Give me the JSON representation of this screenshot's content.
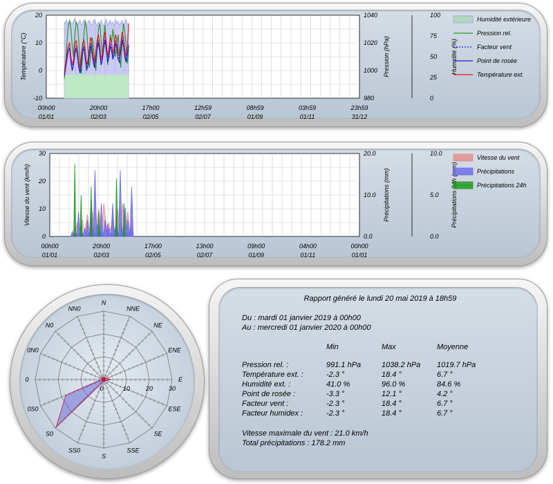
{
  "charts": {
    "chart_data": [
      {
        "type": "line",
        "x_tick_labels": [
          [
            "00h00",
            "01/01"
          ],
          [
            "20h00",
            "02/03"
          ],
          [
            "17h00",
            "02/05"
          ],
          [
            "12h59",
            "02/07"
          ],
          [
            "08h59",
            "01/09"
          ],
          [
            "03h59",
            "01/11"
          ],
          [
            "23h59",
            "31/12"
          ]
        ],
        "y_left": {
          "label": "Température (°C)",
          "ticks": [
            "20",
            "10",
            "0",
            "-10"
          ],
          "ylim": [
            -10,
            20
          ]
        },
        "y_right1": {
          "label": "Pression (hPa)",
          "ticks": [
            "1040",
            "1020",
            "1000",
            "980"
          ],
          "ylim": [
            980,
            1040
          ]
        },
        "y_right2": {
          "label": "Humidité (%)",
          "ticks": [
            "100",
            "75",
            "50",
            "25",
            "0"
          ],
          "ylim": [
            0,
            100
          ]
        },
        "x_range_days": [
          0,
          365
        ],
        "grid": true,
        "legend_position": "right",
        "series": [
          {
            "name": "Humidité extérieure",
            "kind": "area",
            "axis": "humidity",
            "color": "#9fa0e8",
            "x_start": 21,
            "x_end": 96,
            "values": [
              92,
              90,
              94,
              88,
              95,
              91,
              89,
              93,
              96,
              90,
              87,
              92,
              94,
              88,
              91,
              95,
              89,
              86,
              92,
              94,
              90,
              88,
              93,
              95,
              91,
              87,
              92,
              89,
              94,
              90,
              86,
              93,
              95,
              88,
              91,
              94,
              89,
              92,
              87,
              95,
              90,
              93,
              88,
              91,
              94,
              86,
              92,
              95,
              89,
              90
            ]
          },
          {
            "name": "Pression rel.",
            "kind": "line",
            "axis": "pressure",
            "color": "#1a9a1a",
            "x_start": 21,
            "x_end": 96,
            "values": [
              994,
              1005,
              1020,
              1032,
              1036,
              1030,
              1018,
              1010,
              1026,
              1035,
              1033,
              1022,
              1005,
              998,
              1012,
              1028,
              1036,
              1030,
              1015,
              1002,
              1010,
              1024,
              1020,
              1008,
              1000,
              1016,
              1030,
              1034,
              1022,
              1010,
              1025,
              1033,
              1018,
              1004,
              1012,
              1026,
              1020,
              1030,
              1022,
              1010,
              1018,
              1026,
              1012,
              1002,
              1020,
              1034,
              1028,
              1018,
              1005,
              1015
            ]
          },
          {
            "name": "Facteur vent",
            "kind": "dashed",
            "axis": "temperature",
            "color": "#1a1aff",
            "x_start": 21,
            "x_end": 96,
            "values": [
              -1,
              2,
              5,
              8,
              9,
              4,
              1,
              3,
              7,
              9,
              6,
              2,
              0,
              4,
              8,
              9,
              5,
              1,
              3,
              6,
              10,
              8,
              4,
              2,
              5,
              9,
              11,
              7,
              3,
              5,
              9,
              12,
              8,
              4,
              6,
              10,
              8,
              5,
              7,
              11,
              9,
              5,
              4,
              8,
              12,
              10,
              6,
              4,
              7,
              10
            ]
          },
          {
            "name": "Point de rosée",
            "kind": "line",
            "axis": "temperature",
            "color": "#1a1acc",
            "x_start": 21,
            "x_end": 96,
            "values": [
              -2,
              1,
              4,
              7,
              8,
              3,
              0,
              2,
              6,
              8,
              5,
              1,
              -1,
              3,
              7,
              8,
              4,
              0,
              2,
              5,
              9,
              7,
              3,
              1,
              4,
              8,
              10,
              6,
              2,
              4,
              8,
              11,
              7,
              3,
              5,
              9,
              7,
              4,
              6,
              10,
              8,
              4,
              3,
              7,
              11,
              9,
              5,
              3,
              6,
              9
            ]
          },
          {
            "name": "Température ext.",
            "kind": "line",
            "axis": "temperature",
            "color": "#e01515",
            "x_start": 21,
            "x_end": 96,
            "values": [
              -1,
              3,
              6,
              9,
              10,
              5,
              2,
              4,
              9,
              11,
              8,
              3,
              1,
              6,
              10,
              11,
              7,
              2,
              4,
              8,
              12,
              10,
              5,
              3,
              7,
              11,
              13,
              9,
              4,
              6,
              11,
              14,
              10,
              5,
              8,
              12,
              10,
              6,
              9,
              13,
              11,
              7,
              5,
              10,
              14,
              12,
              8,
              5,
              9,
              17
            ]
          }
        ]
      },
      {
        "type": "bar",
        "x_tick_labels": [
          [
            "00h00",
            "01/01"
          ],
          [
            "20h00",
            "02/03"
          ],
          [
            "17h00",
            "02/05"
          ],
          [
            "13h00",
            "02/07"
          ],
          [
            "09h00",
            "01/09"
          ],
          [
            "04h00",
            "01/11"
          ],
          [
            "00h00",
            "01/01"
          ]
        ],
        "y_left": {
          "label": "Vitesse du vent (km/h)",
          "ticks": [
            "30",
            "20",
            "10",
            "0"
          ],
          "ylim": [
            0,
            30
          ]
        },
        "y_right1": {
          "label": "Précipitations (mm)",
          "ticks": [
            "20.0",
            "10.0",
            "0.0"
          ],
          "ylim": [
            0,
            20
          ]
        },
        "y_right2": {
          "label": "Précipitations 24h (mm)",
          "ticks": [
            "10.0",
            "5.0",
            "0.0"
          ],
          "ylim": [
            0,
            10
          ]
        },
        "x_range_days": [
          0,
          365
        ],
        "grid": true,
        "legend_position": "right",
        "series": [
          {
            "name": "Vitesse du vent",
            "kind": "area",
            "axis": "wind",
            "color": "#e58a8a",
            "x_start": 25,
            "x_end": 98,
            "values": [
              0,
              2,
              1,
              0,
              3,
              5,
              2,
              1,
              4,
              6,
              3,
              2,
              5,
              8,
              4,
              2,
              6,
              9,
              3,
              1,
              4,
              7,
              10,
              5,
              3,
              6,
              12,
              8,
              4,
              3,
              5,
              2,
              4,
              7,
              3,
              2,
              6,
              10,
              5,
              4,
              8,
              12,
              6,
              3,
              5,
              9,
              4,
              2,
              3,
              1
            ]
          },
          {
            "name": "Précipitations",
            "kind": "spikes",
            "axis": "precip",
            "color": "#6a6ae8",
            "x_start": 25,
            "x_end": 98,
            "values": [
              0,
              1,
              0,
              2,
              0,
              1,
              6,
              0,
              3,
              1,
              0,
              2,
              0,
              4,
              1,
              0,
              10,
              2,
              0,
              16,
              1,
              3,
              0,
              2,
              8,
              1,
              0,
              4,
              0,
              3,
              2,
              0,
              1,
              8,
              0,
              2,
              5,
              1,
              0,
              16,
              3,
              0,
              2,
              7,
              1,
              4,
              0,
              2,
              12,
              0
            ]
          },
          {
            "name": "Précipitations 24h",
            "kind": "spikes",
            "axis": "precip24",
            "color": "#1a9a1a",
            "x_start": 25,
            "x_end": 98,
            "values": [
              0,
              0,
              0,
              8.8,
              0,
              0,
              0,
              0,
              5,
              0,
              0,
              0,
              0,
              0,
              0,
              0,
              6,
              0,
              0,
              0,
              0,
              0,
              3,
              0,
              0,
              0,
              0,
              0,
              0,
              0,
              0,
              0,
              0,
              0,
              0,
              0,
              7,
              0,
              0,
              0,
              0,
              0,
              4,
              0,
              0,
              0,
              0,
              0,
              0,
              0
            ]
          }
        ]
      },
      {
        "type": "radar",
        "directions": [
          "N",
          "NNE",
          "NE",
          "ENE",
          "E",
          "ESE",
          "SE",
          "SSE",
          "S",
          "SS0",
          "S0",
          "0S0",
          "0",
          "0N0",
          "N0",
          "NN0"
        ],
        "radial_ticks": [
          "0",
          "10",
          "20",
          "30"
        ],
        "rmax": 30,
        "series": [
          {
            "name": "wind-rose",
            "color": "#5a5ad8",
            "values": [
              1.2,
              1.0,
              0.8,
              1.5,
              3.2,
              1.0,
              0.8,
              0.6,
              1.0,
              1.5,
              29.5,
              18.0,
              1.2,
              1.0,
              1.5,
              1.2
            ]
          }
        ]
      }
    ]
  },
  "report": {
    "title": "Rapport généré le lundi 20 mai 2019 à 18h59",
    "from": "Du : mardi 01 janvier 2019 à 00h00",
    "to": "Au : mercredi 01 janvier 2020 à 00h00",
    "headers": [
      "Min",
      "Max",
      "Moyenne"
    ],
    "rows": [
      [
        "Pression rel. :",
        "991.1 hPa",
        "1038.2 hPa",
        "1019.7 hPa"
      ],
      [
        "Température ext. :",
        "-2.3 °",
        "18.4 °",
        "6.7 °"
      ],
      [
        "Humidité ext. :",
        "41.0 %",
        "96.0 %",
        "84.6 %"
      ],
      [
        "Point de rosée :",
        "-3.3 °",
        "12.1 °",
        "4.2 °"
      ],
      [
        "Facteur vent :",
        "-2.3 °",
        "18.4 °",
        "6.7 °"
      ],
      [
        "Facteur humidex :",
        "-2.3 °",
        "18.4 °",
        "6.7 °"
      ]
    ],
    "max_wind": "Vitesse maximale du vent : 21.0 km/h",
    "total_precip": "Total précipitations : 178.2 mm"
  }
}
